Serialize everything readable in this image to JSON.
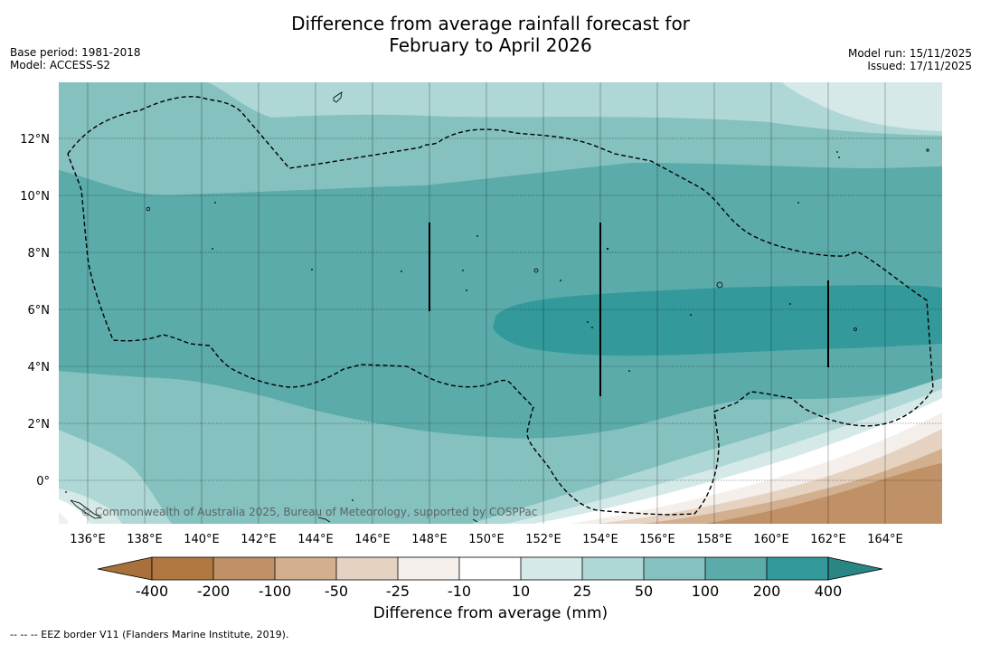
{
  "title_line1": "Difference from average rainfall forecast for",
  "title_line2": "February to April 2026",
  "meta": {
    "base_period": "Base period: 1981-2018",
    "model": "Model: ACCESS-S2",
    "model_run": "Model run: 15/11/2025",
    "issued": "Issued: 17/11/2025"
  },
  "copyright": "© Commonwealth of Australia 2025, Bureau of Meteorology, supported by COSPPac",
  "axes": {
    "lon_labels": [
      "136°E",
      "138°E",
      "140°E",
      "142°E",
      "144°E",
      "146°E",
      "148°E",
      "150°E",
      "152°E",
      "154°E",
      "156°E",
      "158°E",
      "160°E",
      "162°E",
      "164°E"
    ],
    "lat_labels": [
      "12°N",
      "10°N",
      "8°N",
      "6°N",
      "4°N",
      "2°N",
      "0°"
    ]
  },
  "colorbar": {
    "labels": [
      "-400",
      "-200",
      "-100",
      "-50",
      "-25",
      "-10",
      "10",
      "25",
      "50",
      "100",
      "200",
      "400"
    ],
    "colors": [
      "#a8703a",
      "#b07840",
      "#c09066",
      "#d2af8e",
      "#e6d2c0",
      "#f4efea",
      "#ffffff",
      "#d4e9e8",
      "#aed7d6",
      "#84c1bf",
      "#5aabaa",
      "#33999a",
      "#2a8585"
    ],
    "title": "Difference from average (mm)"
  },
  "footnote": "--  --  -- EEZ border V11 (Flanders Marine Institute, 2019)."
}
